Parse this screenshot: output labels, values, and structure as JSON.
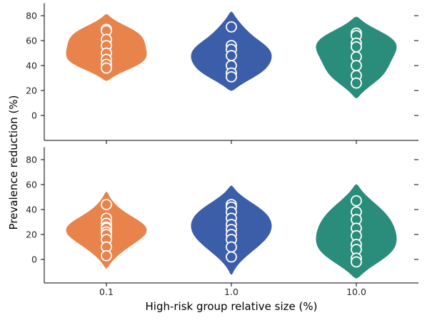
{
  "chart_data": {
    "type": "violin",
    "xlabel": "High-risk group relative size (%)",
    "ylabel": "Prevalence reduction (%)",
    "categories": [
      "0.1",
      "1.0",
      "10.0"
    ],
    "colors": [
      "#e8834b",
      "#3c5ea8",
      "#2a8c7a"
    ],
    "yticks": [
      0,
      20,
      40,
      60,
      80
    ],
    "panels": [
      {
        "ylim": [
          -20,
          90
        ],
        "violins": [
          {
            "category": "0.1",
            "range": [
              28,
              81
            ],
            "points": [
              69,
              68,
              61,
              56,
              50,
              45,
              41,
              38
            ]
          },
          {
            "category": "1.0",
            "range": [
              20,
              83
            ],
            "points": [
              71,
              56,
              53,
              48,
              40,
              34,
              31
            ]
          },
          {
            "category": "10.0",
            "range": [
              14,
              79
            ],
            "points": [
              66,
              64,
              58,
              55,
              47,
              40,
              32,
              26
            ]
          }
        ]
      },
      {
        "ylim": [
          -20,
          90
        ],
        "violins": [
          {
            "category": "0.1",
            "range": [
              -7,
              54
            ],
            "points": [
              44,
              33,
              29,
              26,
              25,
              22,
              20,
              16,
              10,
              3
            ]
          },
          {
            "category": "1.0",
            "range": [
              -12,
              59
            ],
            "points": [
              44,
              42,
              38,
              33,
              28,
              24,
              20,
              16,
              10,
              2
            ]
          },
          {
            "category": "10.0",
            "range": [
              -15,
              60
            ],
            "points": [
              47,
              38,
              32,
              25,
              19,
              12,
              8,
              1,
              -2
            ]
          }
        ]
      }
    ]
  }
}
